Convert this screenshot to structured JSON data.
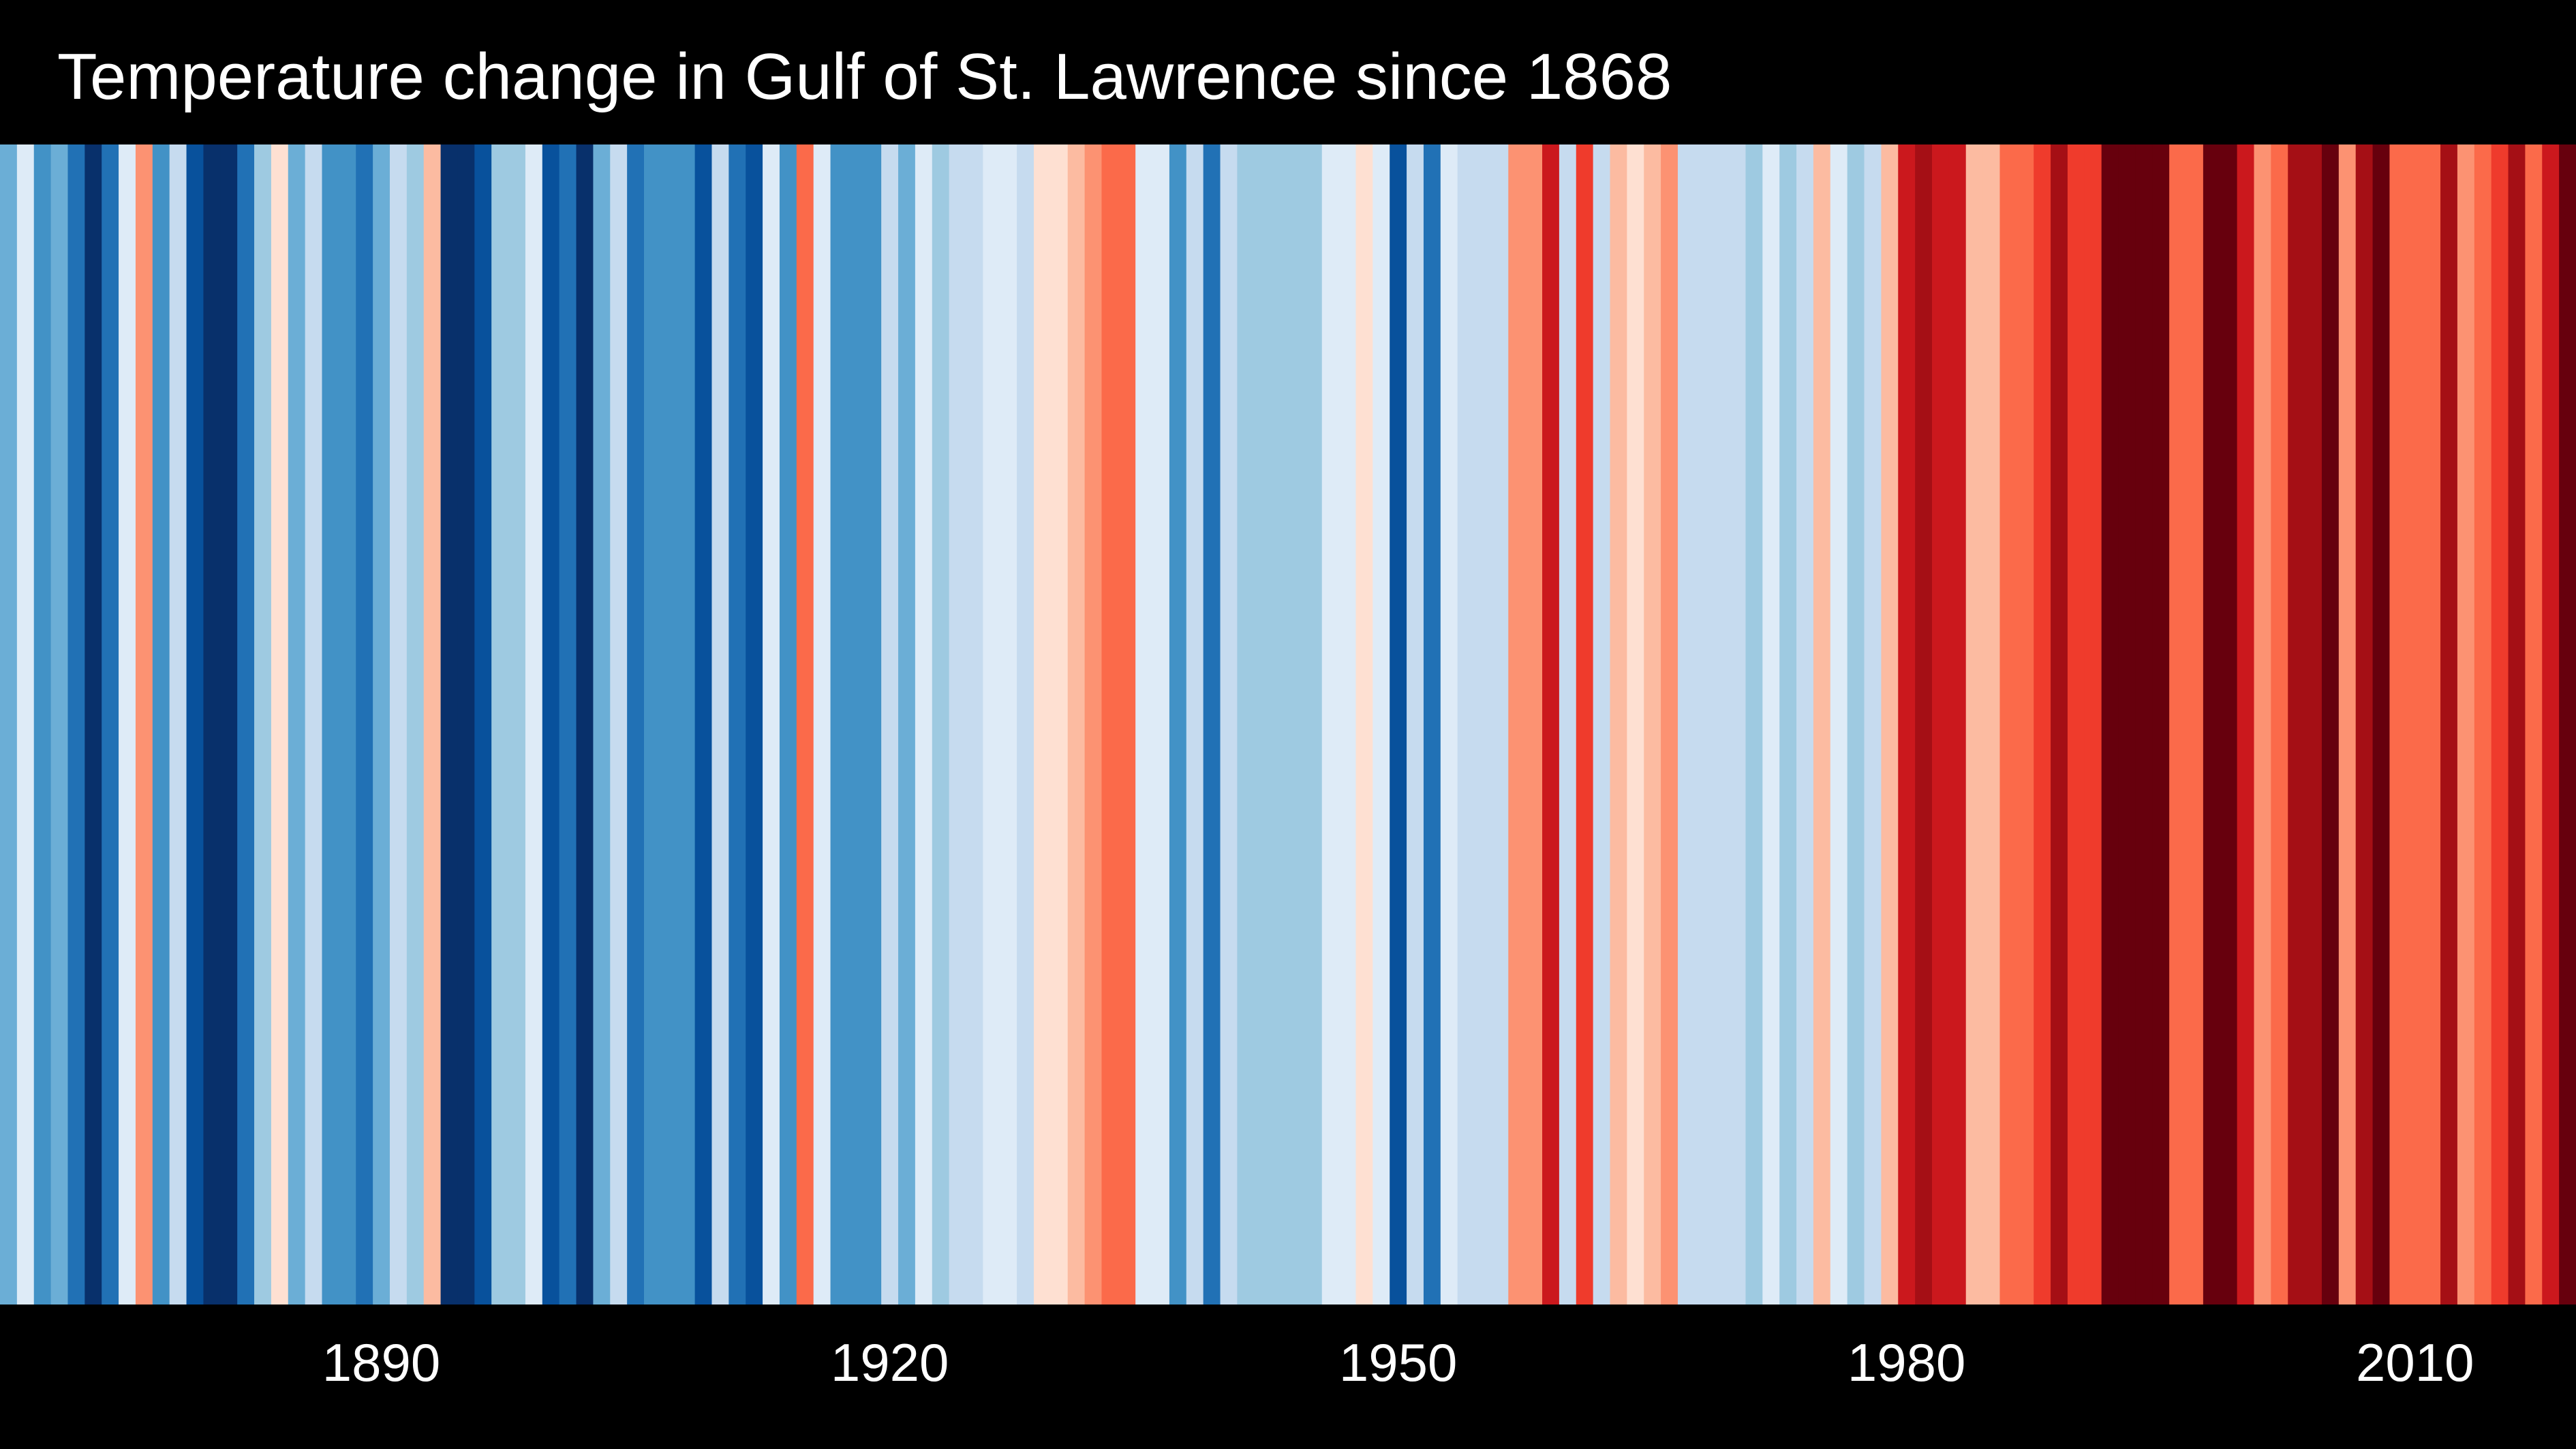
{
  "chart_data": {
    "type": "heatmap",
    "title": "Temperature change in Gulf of St. Lawrence since 1868",
    "x_label": "",
    "y_label": "",
    "x_range": [
      1868,
      2019
    ],
    "x_ticks": [
      1890,
      1920,
      1950,
      1980,
      2010
    ],
    "colors": [
      "#08306b",
      "#08519c",
      "#2171b5",
      "#4292c6",
      "#6baed6",
      "#9ecae1",
      "#c6dbef",
      "#deebf7",
      "#fee0d2",
      "#fcbba1",
      "#fc9272",
      "#fb6a4a",
      "#ef3b2c",
      "#cb181d",
      "#a50f15",
      "#67000d"
    ],
    "series": [
      {
        "values": [
          4,
          7,
          3,
          4,
          2,
          0,
          2,
          7,
          10,
          3,
          6,
          1,
          0,
          0,
          2,
          5,
          8,
          4,
          6,
          3,
          3,
          2,
          4,
          6,
          5,
          9,
          0,
          0,
          1,
          5,
          5,
          7,
          1,
          2,
          0,
          4,
          6,
          2,
          3,
          3,
          3,
          1,
          6,
          2,
          1,
          7,
          3,
          11,
          7,
          3,
          3,
          3,
          6,
          4,
          7,
          5,
          6,
          6,
          7,
          7,
          6,
          8,
          8,
          9,
          10,
          11,
          11,
          7,
          7,
          3,
          6,
          2,
          6,
          5,
          5,
          5,
          5,
          5,
          7,
          7,
          8,
          7,
          1,
          6,
          2,
          7,
          6,
          6,
          6,
          10,
          10,
          13,
          6,
          12,
          6,
          9,
          8,
          9,
          10,
          6,
          6,
          6,
          6,
          5,
          7,
          5,
          6,
          9,
          7,
          5,
          6,
          9,
          13,
          14,
          13,
          13,
          9,
          9,
          11,
          11,
          12,
          14,
          12,
          12,
          15,
          15,
          15,
          15,
          11,
          11,
          15,
          15,
          13,
          10,
          11,
          14,
          14,
          15,
          10,
          14,
          15,
          11,
          11,
          11,
          14,
          10,
          11,
          12,
          14,
          11,
          13,
          15
        ]
      }
    ]
  }
}
